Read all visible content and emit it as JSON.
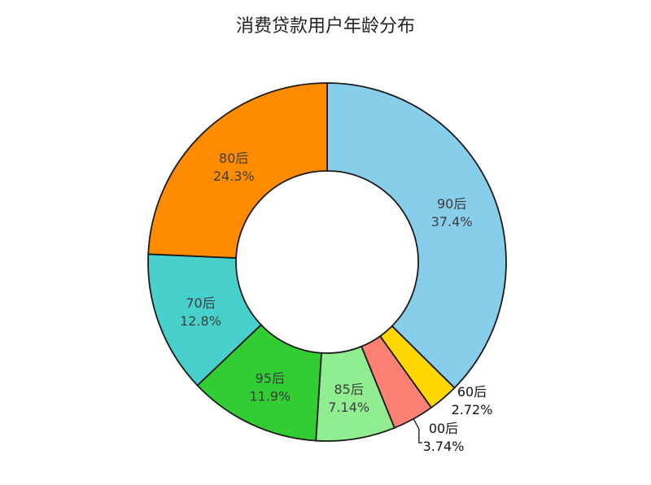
{
  "chart_data": {
    "type": "pie",
    "title": "消费贷款用户年龄分布",
    "slices": [
      {
        "label": "90后",
        "value": 37.4,
        "pct_text": "37.4%",
        "color": "#87CEEB"
      },
      {
        "label": "60后",
        "value": 2.72,
        "pct_text": "2.72%",
        "color": "#FFD700"
      },
      {
        "label": "00后",
        "value": 3.74,
        "pct_text": "3.74%",
        "color": "#FA8072"
      },
      {
        "label": "85后",
        "value": 7.14,
        "pct_text": "7.14%",
        "color": "#90EE90"
      },
      {
        "label": "95后",
        "value": 11.9,
        "pct_text": "11.9%",
        "color": "#32CD32"
      },
      {
        "label": "70后",
        "value": 12.8,
        "pct_text": "12.8%",
        "color": "#48D1CC"
      },
      {
        "label": "80后",
        "value": 24.3,
        "pct_text": "24.3%",
        "color": "#FF8C00"
      }
    ],
    "donut": true,
    "start_angle": "12 o'clock",
    "direction": "clockwise"
  }
}
